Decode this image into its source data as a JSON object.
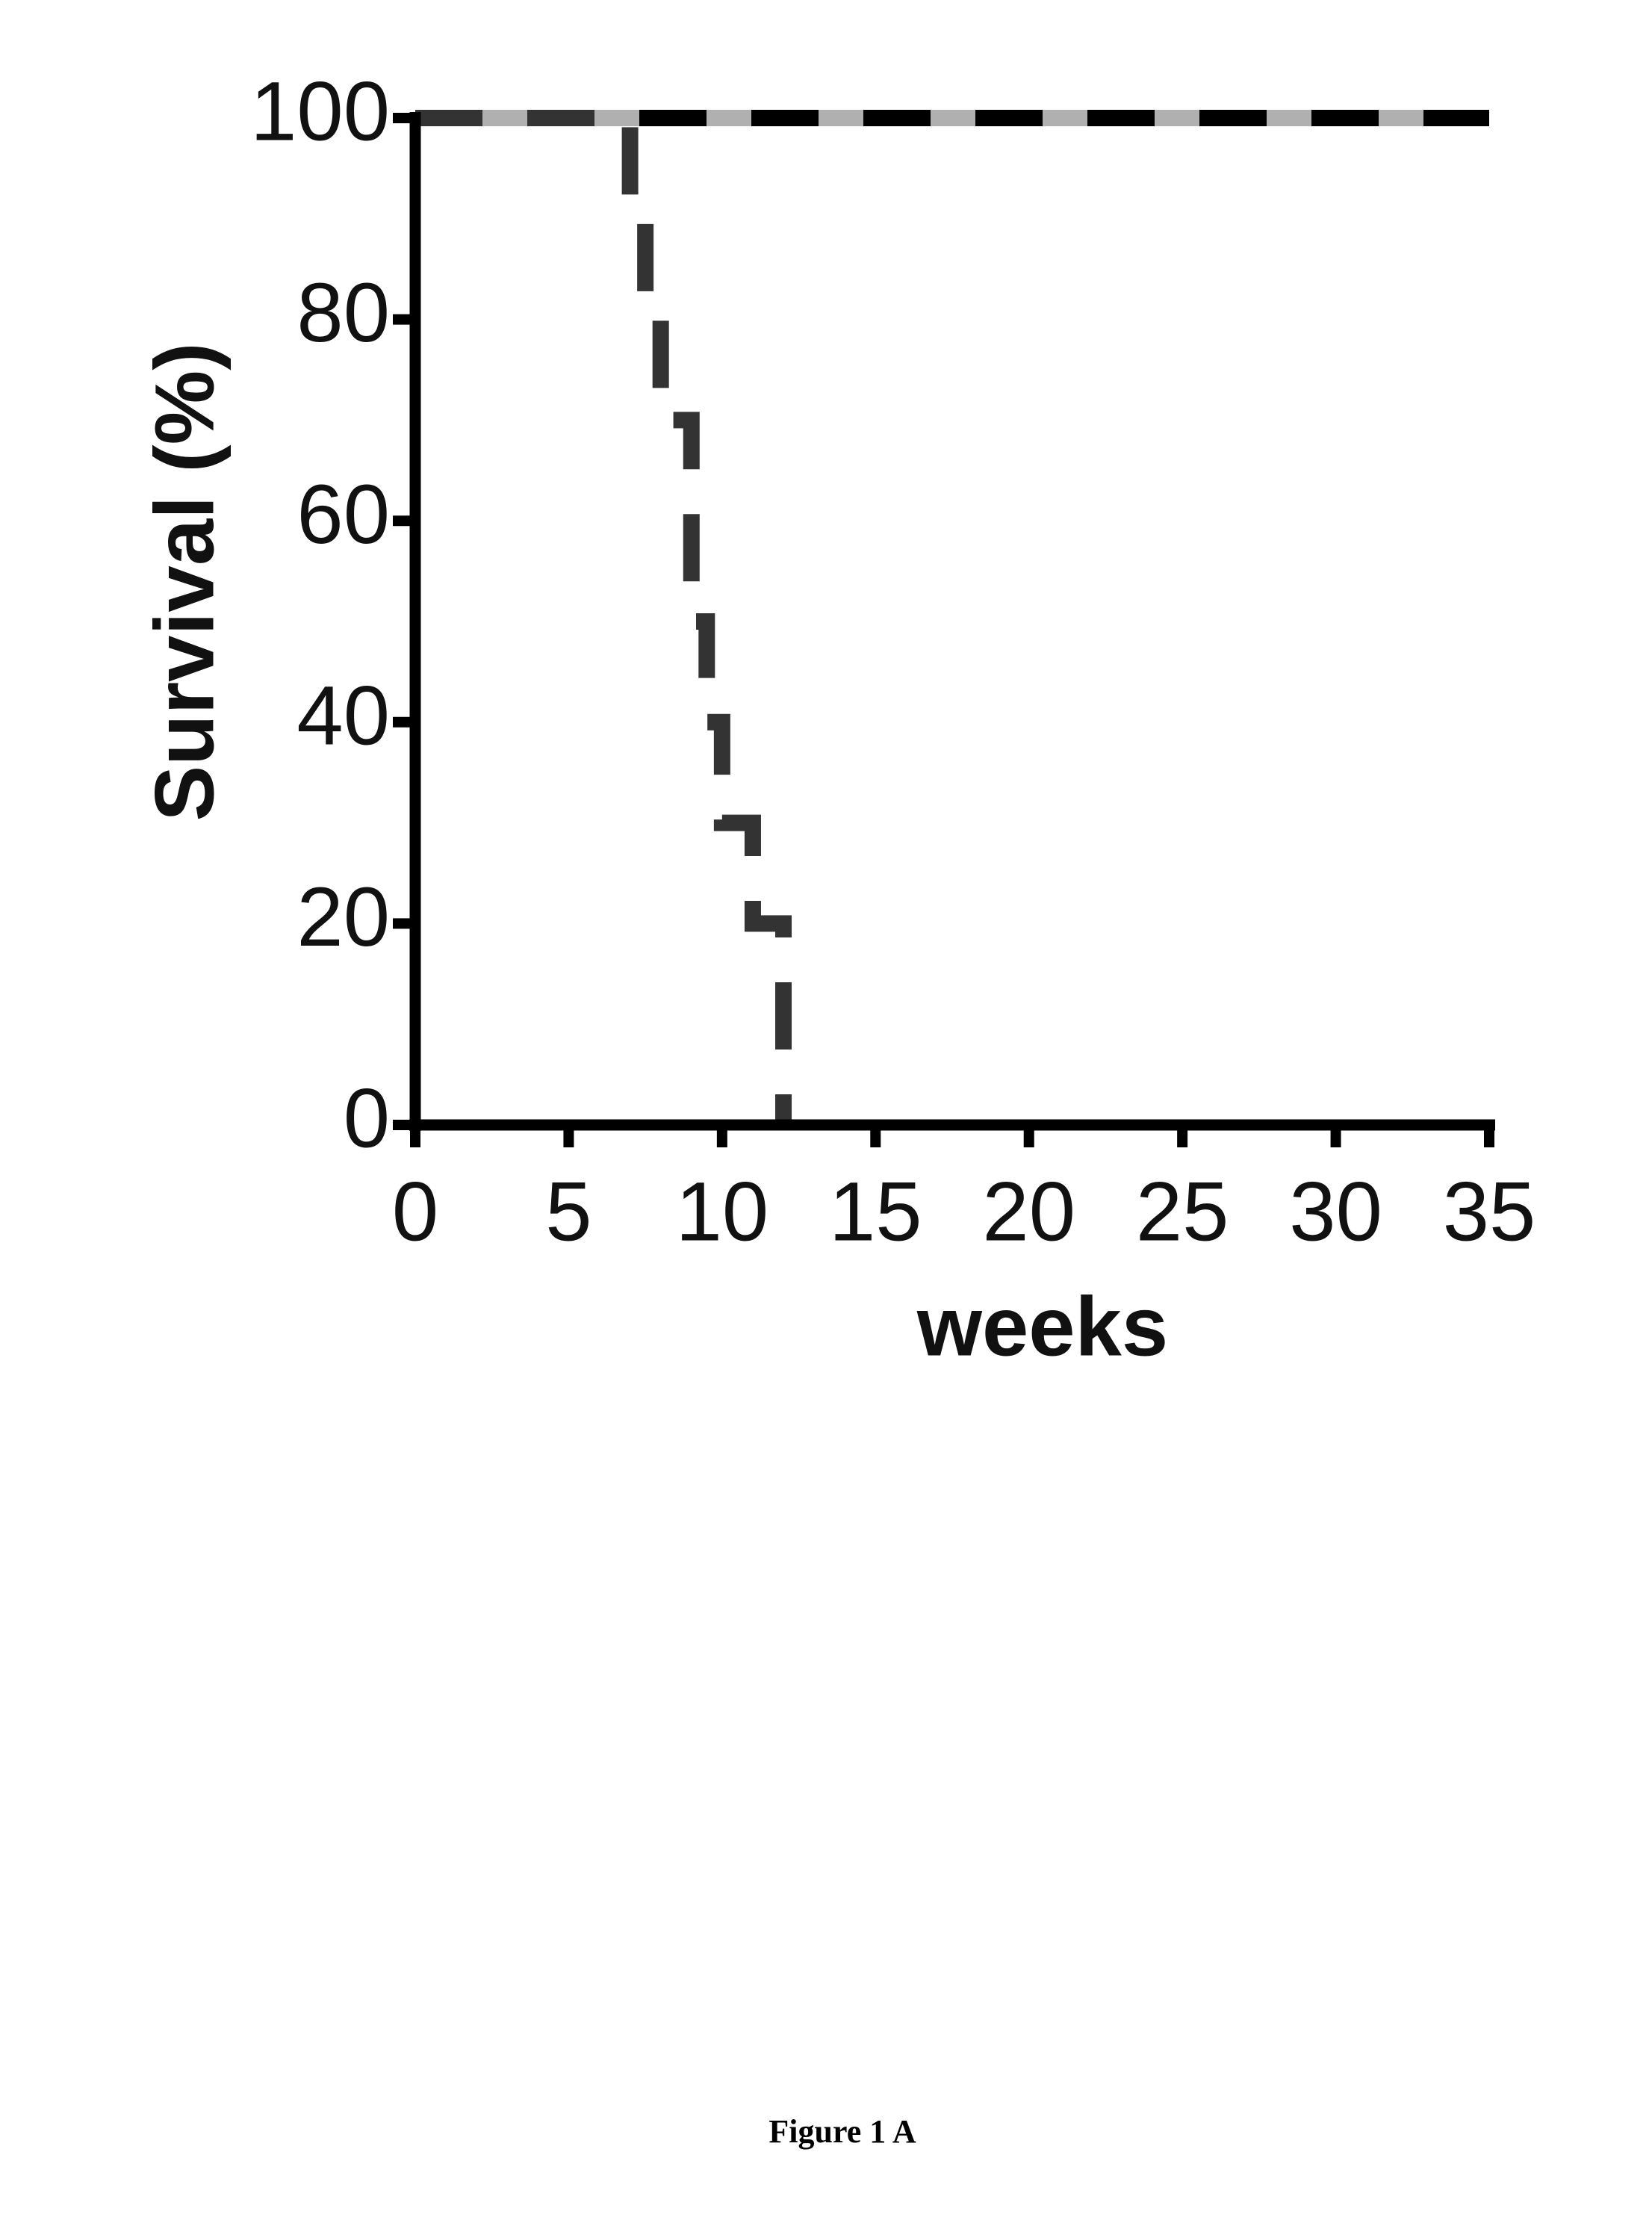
{
  "chart_data": {
    "type": "line",
    "step": true,
    "xlabel": "weeks",
    "ylabel": "Survival (%)",
    "xlim": [
      0,
      35
    ],
    "xticks": [
      0,
      5,
      10,
      15,
      20,
      25,
      30,
      35
    ],
    "ylim": [
      0,
      100
    ],
    "yticks": [
      0,
      20,
      40,
      60,
      80,
      100
    ],
    "series": [
      {
        "color": "#b0b0b0",
        "dashed": false,
        "x": [
          0,
          35
        ],
        "values": [
          100,
          100
        ]
      },
      {
        "color": "#000000",
        "dashed": true,
        "x": [
          0,
          35
        ],
        "values": [
          100,
          100
        ]
      },
      {
        "color": "#333333",
        "dashed": true,
        "x": [
          0,
          7,
          7.5,
          8,
          9,
          9.5,
          10,
          11,
          12
        ],
        "values": [
          100,
          90,
          80,
          70,
          50,
          40,
          30,
          20,
          0
        ]
      }
    ]
  },
  "caption": "Figure 1 A"
}
